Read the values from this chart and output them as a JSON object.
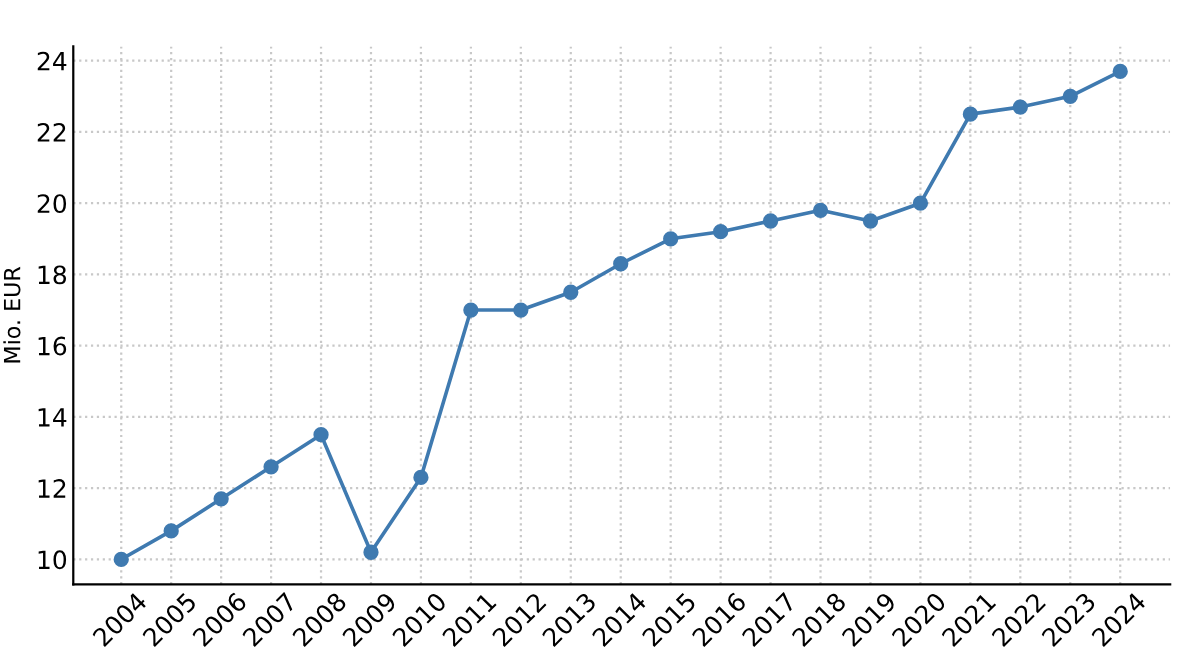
{
  "chart_data": {
    "type": "line",
    "ylabel": "Mio. EUR",
    "categories": [
      "2004",
      "2005",
      "2006",
      "2007",
      "2008",
      "2009",
      "2010",
      "2011",
      "2012",
      "2013",
      "2014",
      "2015",
      "2016",
      "2017",
      "2018",
      "2019",
      "2020",
      "2021",
      "2022",
      "2023",
      "2024"
    ],
    "series": [
      {
        "color": "#3f7ab0",
        "values": [
          10,
          10.8,
          11.7,
          12.6,
          13.5,
          10.2,
          12.3,
          17,
          17,
          17.5,
          18.3,
          19,
          19.2,
          19.5,
          19.8,
          19.5,
          20,
          22.5,
          22.7,
          23,
          23.7
        ]
      }
    ],
    "ylim": [
      9.3,
      24.4
    ],
    "yticks": [
      10,
      12,
      14,
      16,
      18,
      20,
      22,
      24
    ],
    "grid": true,
    "marker": "circle",
    "line_style": "solid"
  }
}
